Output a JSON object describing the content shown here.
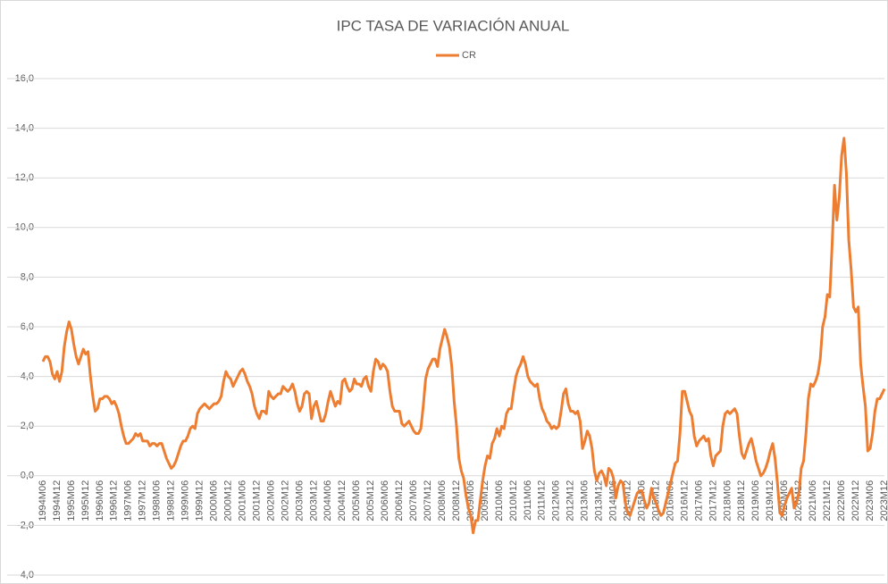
{
  "chart_data": {
    "type": "line",
    "title": "IPC TASA DE VARIACIÓN ANUAL",
    "legend": "top",
    "grid": true,
    "ylim": [
      -4,
      16
    ],
    "yticks": [
      {
        "value": -4,
        "label": "-4,0"
      },
      {
        "value": -2,
        "label": "-2,0"
      },
      {
        "value": 0,
        "label": "0,0"
      },
      {
        "value": 2,
        "label": "2,0"
      },
      {
        "value": 4,
        "label": "4,0"
      },
      {
        "value": 6,
        "label": "6,0"
      },
      {
        "value": 8,
        "label": "8,0"
      },
      {
        "value": 10,
        "label": "10,0"
      },
      {
        "value": 12,
        "label": "12,0"
      },
      {
        "value": 14,
        "label": "14,0"
      },
      {
        "value": 16,
        "label": "16,0"
      }
    ],
    "categories": [
      "1994M06",
      null,
      null,
      null,
      null,
      null,
      "1994M12",
      null,
      null,
      null,
      null,
      null,
      "1995M06",
      null,
      null,
      null,
      null,
      null,
      "1995M12",
      null,
      null,
      null,
      null,
      null,
      "1996M06",
      null,
      null,
      null,
      null,
      null,
      "1996M12",
      null,
      null,
      null,
      null,
      null,
      "1997M06",
      null,
      null,
      null,
      null,
      null,
      "1997M12",
      null,
      null,
      null,
      null,
      null,
      "1998M06",
      null,
      null,
      null,
      null,
      null,
      "1998M12",
      null,
      null,
      null,
      null,
      null,
      "1999M06",
      null,
      null,
      null,
      null,
      null,
      "1999M12",
      null,
      null,
      null,
      null,
      null,
      "2000M06",
      null,
      null,
      null,
      null,
      null,
      "2000M12",
      null,
      null,
      null,
      null,
      null,
      "2001M06",
      null,
      null,
      null,
      null,
      null,
      "2001M12",
      null,
      null,
      null,
      null,
      null,
      "2002M06",
      null,
      null,
      null,
      null,
      null,
      "2002M12",
      null,
      null,
      null,
      null,
      null,
      "2003M06",
      null,
      null,
      null,
      null,
      null,
      "2003M12",
      null,
      null,
      null,
      null,
      null,
      "2004M06",
      null,
      null,
      null,
      null,
      null,
      "2004M12",
      null,
      null,
      null,
      null,
      null,
      "2005M06",
      null,
      null,
      null,
      null,
      null,
      "2005M12",
      null,
      null,
      null,
      null,
      null,
      "2006M06",
      null,
      null,
      null,
      null,
      null,
      "2006M12",
      null,
      null,
      null,
      null,
      null,
      "2007M06",
      null,
      null,
      null,
      null,
      null,
      "2007M12",
      null,
      null,
      null,
      null,
      null,
      "2008M06",
      null,
      null,
      null,
      null,
      null,
      "2008M12",
      null,
      null,
      null,
      null,
      null,
      "2009M06",
      null,
      null,
      null,
      null,
      null,
      "2009M12",
      null,
      null,
      null,
      null,
      null,
      "2010M06",
      null,
      null,
      null,
      null,
      null,
      "2010M12",
      null,
      null,
      null,
      null,
      null,
      "2011M06",
      null,
      null,
      null,
      null,
      null,
      "2011M12",
      null,
      null,
      null,
      null,
      null,
      "2012M06",
      null,
      null,
      null,
      null,
      null,
      "2012M12",
      null,
      null,
      null,
      null,
      null,
      "2013M06",
      null,
      null,
      null,
      null,
      null,
      "2013M12",
      null,
      null,
      null,
      null,
      null,
      "2014M06",
      null,
      null,
      null,
      null,
      null,
      "2014M12",
      null,
      null,
      null,
      null,
      null,
      "2015M06",
      null,
      null,
      null,
      null,
      null,
      "2015M12",
      null,
      null,
      null,
      null,
      null,
      "2016M06",
      null,
      null,
      null,
      null,
      null,
      "2016M12",
      null,
      null,
      null,
      null,
      null,
      "2017M06",
      null,
      null,
      null,
      null,
      null,
      "2017M12",
      null,
      null,
      null,
      null,
      null,
      "2018M06",
      null,
      null,
      null,
      null,
      null,
      "2018M12",
      null,
      null,
      null,
      null,
      null,
      "2019M06",
      null,
      null,
      null,
      null,
      null,
      "2019M12",
      null,
      null,
      null,
      null,
      null,
      "2020M06",
      null,
      null,
      null,
      null,
      null,
      "2020M12",
      null,
      null,
      null,
      null,
      null,
      "2021M06",
      null,
      null,
      null,
      null,
      null,
      "2021M12",
      null,
      null,
      null,
      null,
      null,
      "2022M06",
      null,
      null,
      null,
      null,
      null,
      "2022M12",
      null,
      null,
      null,
      null,
      null,
      "2023M06",
      null,
      null,
      null,
      null,
      null,
      "2023M12"
    ],
    "series": [
      {
        "name": "CR",
        "color": "#ed7d31",
        "values": [
          4.6,
          4.8,
          4.8,
          4.6,
          4.1,
          3.9,
          4.2,
          3.8,
          4.2,
          5.2,
          5.8,
          6.2,
          5.9,
          5.3,
          4.8,
          4.5,
          4.8,
          5.1,
          4.9,
          5.0,
          4.0,
          3.2,
          2.6,
          2.7,
          3.1,
          3.1,
          3.2,
          3.2,
          3.1,
          2.9,
          3.0,
          2.8,
          2.5,
          2.0,
          1.6,
          1.3,
          1.3,
          1.4,
          1.5,
          1.7,
          1.6,
          1.7,
          1.4,
          1.4,
          1.4,
          1.2,
          1.3,
          1.3,
          1.2,
          1.3,
          1.3,
          1.0,
          0.7,
          0.5,
          0.3,
          0.4,
          0.6,
          0.9,
          1.2,
          1.4,
          1.4,
          1.6,
          1.9,
          2.0,
          1.9,
          2.5,
          2.7,
          2.8,
          2.9,
          2.8,
          2.7,
          2.8,
          2.9,
          2.9,
          3.0,
          3.2,
          3.8,
          4.2,
          4.0,
          3.9,
          3.6,
          3.8,
          4.0,
          4.2,
          4.3,
          4.1,
          3.8,
          3.6,
          3.3,
          2.8,
          2.5,
          2.3,
          2.6,
          2.6,
          2.5,
          3.4,
          3.2,
          3.1,
          3.2,
          3.3,
          3.3,
          3.6,
          3.5,
          3.4,
          3.5,
          3.7,
          3.4,
          2.9,
          2.6,
          2.8,
          3.3,
          3.4,
          3.3,
          2.3,
          2.8,
          3.0,
          2.6,
          2.2,
          2.2,
          2.5,
          3.0,
          3.4,
          3.1,
          2.8,
          3.0,
          2.9,
          3.8,
          3.9,
          3.6,
          3.4,
          3.5,
          3.9,
          3.7,
          3.7,
          3.6,
          3.9,
          4.0,
          3.6,
          3.4,
          4.2,
          4.7,
          4.6,
          4.3,
          4.5,
          4.4,
          4.2,
          3.4,
          2.8,
          2.6,
          2.6,
          2.6,
          2.1,
          2.0,
          2.1,
          2.2,
          2.0,
          1.8,
          1.7,
          1.7,
          1.9,
          2.8,
          3.9,
          4.3,
          4.5,
          4.7,
          4.7,
          4.4,
          5.1,
          5.5,
          5.9,
          5.6,
          5.2,
          4.4,
          3.0,
          2.0,
          0.7,
          0.2,
          -0.1,
          -0.8,
          -1.3,
          -1.6,
          -2.3,
          -1.8,
          -1.8,
          -1.0,
          -0.2,
          0.4,
          0.8,
          0.7,
          1.3,
          1.5,
          1.9,
          1.6,
          2.0,
          1.9,
          2.5,
          2.7,
          2.7,
          3.4,
          4.0,
          4.3,
          4.5,
          4.8,
          4.5,
          4.0,
          3.8,
          3.7,
          3.6,
          3.7,
          3.1,
          2.7,
          2.5,
          2.2,
          2.1,
          1.9,
          2.0,
          1.9,
          2.0,
          2.6,
          3.3,
          3.5,
          2.9,
          2.6,
          2.6,
          2.5,
          2.6,
          2.2,
          1.1,
          1.4,
          1.8,
          1.6,
          1.1,
          0.2,
          -0.2,
          0.1,
          0.2,
          0.0,
          -0.4,
          0.3,
          0.2,
          -0.1,
          -0.9,
          -0.4,
          -0.2,
          -0.3,
          -1.1,
          -1.5,
          -1.6,
          -1.3,
          -1.0,
          -0.7,
          -0.6,
          -0.6,
          -1.0,
          -1.3,
          -1.1,
          -0.5,
          -0.9,
          -1.1,
          -1.4,
          -1.6,
          -1.5,
          -1.1,
          -0.7,
          -0.3,
          0.1,
          0.5,
          0.6,
          1.7,
          3.4,
          3.4,
          3.0,
          2.6,
          2.4,
          1.6,
          1.2,
          1.4,
          1.5,
          1.6,
          1.4,
          1.5,
          0.8,
          0.4,
          0.8,
          0.9,
          1.0,
          2.0,
          2.5,
          2.6,
          2.5,
          2.6,
          2.7,
          2.5,
          1.6,
          0.9,
          0.7,
          1.0,
          1.3,
          1.5,
          1.1,
          0.6,
          0.3,
          0.0,
          0.1,
          0.3,
          0.6,
          1.0,
          1.3,
          0.7,
          -0.3,
          -1.5,
          -1.6,
          -1.2,
          -0.9,
          -0.7,
          -0.5,
          -1.3,
          -1.1,
          -0.7,
          0.3,
          0.6,
          1.7,
          3.1,
          3.7,
          3.6,
          3.8,
          4.1,
          4.7,
          6.0,
          6.4,
          7.3,
          7.2,
          9.3,
          11.7,
          10.3,
          11.2,
          12.9,
          13.6,
          12.2,
          9.5,
          8.3,
          6.8,
          6.6,
          6.8,
          4.5,
          3.6,
          2.8,
          1.0,
          1.1,
          1.7,
          2.6,
          3.1,
          3.1,
          3.3,
          3.5
        ]
      }
    ]
  }
}
